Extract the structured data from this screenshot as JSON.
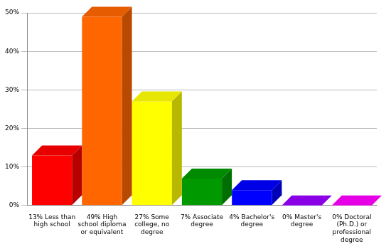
{
  "chart_data": {
    "type": "bar",
    "categories": [
      "13% Less than high school",
      "49% High school diploma or equivalent",
      "27% Some college, no degree",
      "7% Associate degree",
      "4% Bachelor's degree",
      "0% Master's degree",
      "0% Doctoral (Ph.D.) or professional degree"
    ],
    "values": [
      13,
      49,
      27,
      7,
      4,
      0,
      0
    ],
    "colors": [
      "#ff0000",
      "#ff6600",
      "#ffff00",
      "#009900",
      "#0000ff",
      "#9900ff",
      "#ff00ff"
    ],
    "ylim": [
      0,
      50
    ],
    "yticks": [
      {
        "value": 0,
        "label": "0%"
      },
      {
        "value": 10,
        "label": "10%"
      },
      {
        "value": 20,
        "label": "20%"
      },
      {
        "value": 30,
        "label": "30%"
      },
      {
        "value": 40,
        "label": "40%"
      },
      {
        "value": 50,
        "label": "50%"
      }
    ],
    "grid": true
  }
}
